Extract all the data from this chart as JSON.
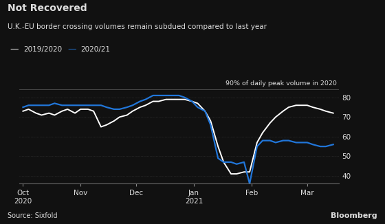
{
  "title": "Not Recovered",
  "subtitle": "U.K.-EU border crossing volumes remain subdued compared to last year",
  "ylabel_text": "90% of daily peak volume in 2020",
  "source": "Source: Sixfold",
  "background_color": "#111111",
  "text_color": "#dddddd",
  "grid_color": "#333333",
  "line1_color": "#ffffff",
  "line2_color": "#2176d9",
  "legend_labels": [
    "2019/2020",
    "2020/21"
  ],
  "ylim": [
    36,
    84
  ],
  "yticks": [
    40,
    50,
    60,
    70,
    80
  ],
  "x_tick_positions": [
    0,
    31,
    61,
    92,
    123,
    153
  ],
  "x_tick_labels_top": [
    "Oct\n2020",
    "Nov",
    "Dec",
    "Jan\n2021",
    "Feb",
    "Mar"
  ],
  "line1_x": [
    0,
    3,
    7,
    10,
    14,
    17,
    21,
    24,
    28,
    31,
    35,
    38,
    42,
    45,
    49,
    52,
    56,
    59,
    63,
    66,
    70,
    73,
    77,
    80,
    84,
    87,
    91,
    94,
    98,
    101,
    105,
    108,
    112,
    115,
    119,
    122,
    126,
    129,
    133,
    136,
    140,
    143,
    147,
    150,
    153,
    156,
    160,
    163,
    167
  ],
  "line1_y": [
    73,
    74,
    72,
    71,
    72,
    71,
    73,
    74,
    72,
    74,
    74,
    73,
    65,
    66,
    68,
    70,
    71,
    73,
    75,
    76,
    78,
    78,
    79,
    79,
    79,
    79,
    78,
    77,
    73,
    68,
    55,
    47,
    41,
    41,
    42,
    42,
    57,
    62,
    67,
    70,
    73,
    75,
    76,
    76,
    76,
    75,
    74,
    73,
    72
  ],
  "line2_x": [
    0,
    3,
    7,
    10,
    14,
    17,
    21,
    24,
    28,
    31,
    35,
    38,
    42,
    45,
    49,
    52,
    56,
    59,
    63,
    66,
    70,
    73,
    77,
    80,
    84,
    87,
    91,
    94,
    98,
    101,
    105,
    108,
    112,
    115,
    119,
    122,
    126,
    129,
    133,
    136,
    140,
    143,
    147,
    150,
    153,
    156,
    160,
    163,
    167
  ],
  "line2_y": [
    75,
    76,
    76,
    76,
    76,
    77,
    76,
    76,
    76,
    76,
    76,
    76,
    76,
    75,
    74,
    74,
    75,
    76,
    78,
    79,
    81,
    81,
    81,
    81,
    81,
    80,
    78,
    75,
    73,
    66,
    49,
    47,
    47,
    46,
    47,
    36,
    55,
    58,
    58,
    57,
    58,
    58,
    57,
    57,
    57,
    56,
    55,
    55,
    56
  ],
  "xlim": [
    -2,
    170
  ]
}
